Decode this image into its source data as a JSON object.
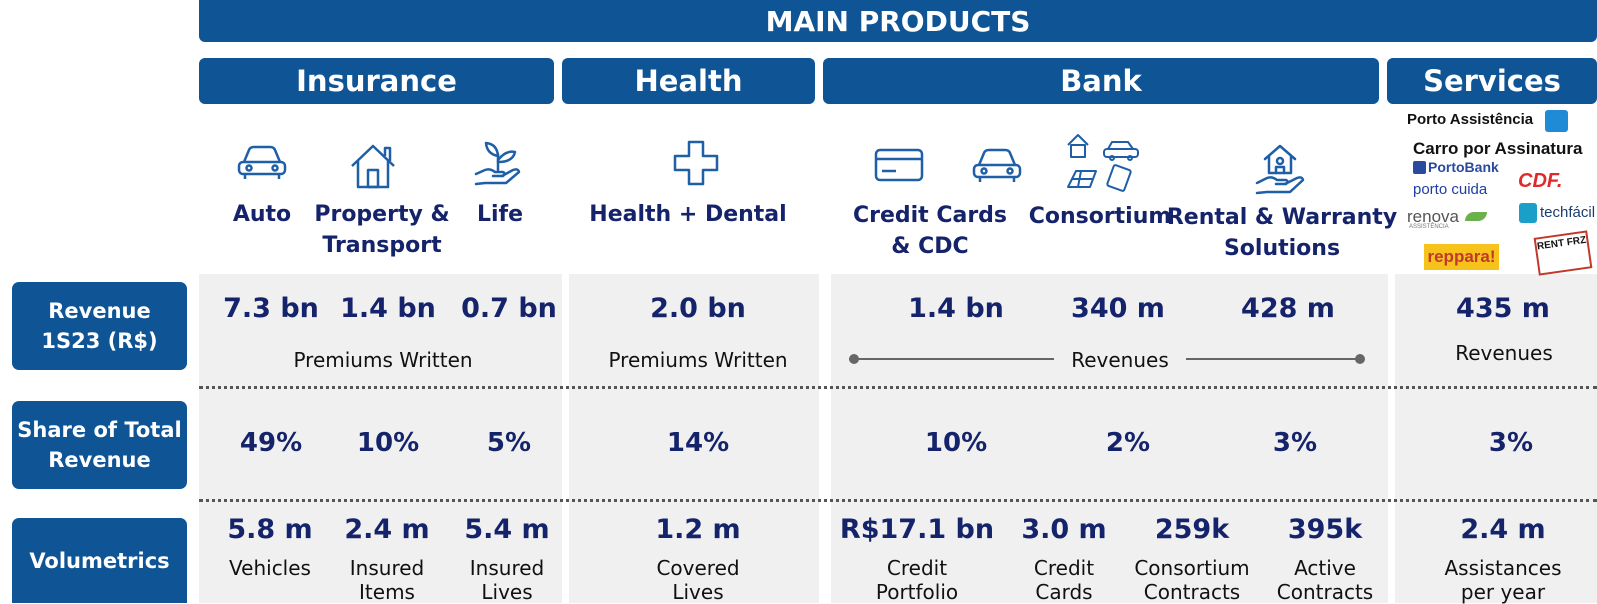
{
  "header": {
    "title": "MAIN PRODUCTS"
  },
  "segments": [
    "Insurance",
    "Health",
    "Bank",
    "Services"
  ],
  "categories": {
    "auto": "Auto",
    "property": [
      "Property &",
      "Transport"
    ],
    "life": "Life",
    "health": "Health + Dental",
    "credit": [
      "Credit Cards",
      "& CDC"
    ],
    "consortium": "Consortium",
    "rental": [
      "Rental & Warranty",
      "Solutions"
    ]
  },
  "services_logos": [
    "Porto Assistência",
    "Carro por Assinatura",
    "PortoBank",
    "porto cuida",
    "CDF.",
    "renova",
    "ASSISTÊNCIA",
    "techfácil",
    "reppara!",
    "RENT FRZ"
  ],
  "rows": {
    "revenue_label": [
      "Revenue",
      "1S23 (R$)"
    ],
    "share_label": [
      "Share of Total",
      "Revenue"
    ],
    "volumetrics_label": "Volumetrics"
  },
  "revenue": {
    "values": [
      "7.3 bn",
      "1.4 bn",
      "0.7 bn",
      "2.0 bn",
      "1.4 bn",
      "340 m",
      "428 m",
      "435 m"
    ],
    "notes": [
      "Premiums Written",
      "Premiums Written",
      "Revenues",
      "Revenues"
    ]
  },
  "share": [
    "49%",
    "10%",
    "5%",
    "14%",
    "10%",
    "2%",
    "3%",
    "3%"
  ],
  "volumetrics": [
    {
      "value": "5.8 m",
      "label": [
        "Vehicles"
      ]
    },
    {
      "value": "2.4 m",
      "label": [
        "Insured",
        "Items"
      ]
    },
    {
      "value": "5.4 m",
      "label": [
        "Insured",
        "Lives"
      ]
    },
    {
      "value": "1.2 m",
      "label": [
        "Covered",
        "Lives"
      ]
    },
    {
      "value": "R$17.1 bn",
      "label": [
        "Credit",
        "Portfolio"
      ]
    },
    {
      "value": "3.0 m",
      "label": [
        "Credit",
        "Cards"
      ]
    },
    {
      "value": "259k",
      "label": [
        "Consortium",
        "Contracts"
      ]
    },
    {
      "value": "395k",
      "label": [
        "Active",
        "Contracts"
      ]
    },
    {
      "value": "2.4 m",
      "label": [
        "Assistances",
        "per year"
      ]
    }
  ],
  "icons": [
    "car-icon",
    "house-icon",
    "hand-plant-icon",
    "medical-cross-icon",
    "credit-card-icon",
    "car-icon",
    "consortium-assets-icon",
    "hand-house-icon"
  ],
  "colors": {
    "brand_blue": "#0f5596",
    "value_navy": "#15236b",
    "panel_gray": "#f0f0f0"
  }
}
